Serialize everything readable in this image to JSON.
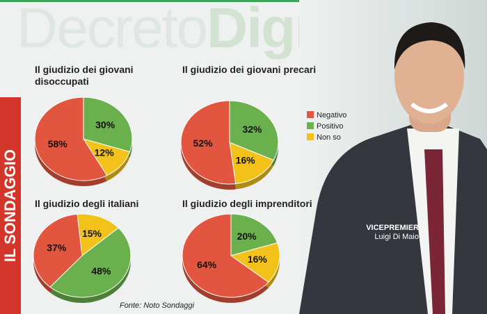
{
  "background_text": [
    "Decreto",
    "Dignità"
  ],
  "side_label": "IL SONDAGGIO",
  "source": "Fonte: Noto Sondaggi",
  "caption": {
    "role": "VICEPREMIER",
    "name": "Luigi Di Maio"
  },
  "legend": {
    "labels": [
      "Negativo",
      "Positivo",
      "Non so"
    ],
    "colors": [
      "#e2553f",
      "#6ab04c",
      "#f2c21b"
    ]
  },
  "chart_data": [
    {
      "type": "pie",
      "title": "Il giudizio dei giovani disoccupati",
      "values": [
        58,
        30,
        12
      ],
      "value_labels": [
        "58%",
        "30%",
        "12%"
      ]
    },
    {
      "type": "pie",
      "title": "Il giudizio dei giovani precari",
      "values": [
        52,
        32,
        16
      ],
      "value_labels": [
        "52%",
        "32%",
        "16%"
      ]
    },
    {
      "type": "pie",
      "title": "Il giudizio degli italiani",
      "values": [
        37,
        48,
        15
      ],
      "value_labels": [
        "37%",
        "48%",
        "15%"
      ]
    },
    {
      "type": "pie",
      "title": "Il giudizio degli imprenditori",
      "values": [
        64,
        20,
        16
      ],
      "value_labels": [
        "64%",
        "20%",
        "16%"
      ]
    }
  ]
}
